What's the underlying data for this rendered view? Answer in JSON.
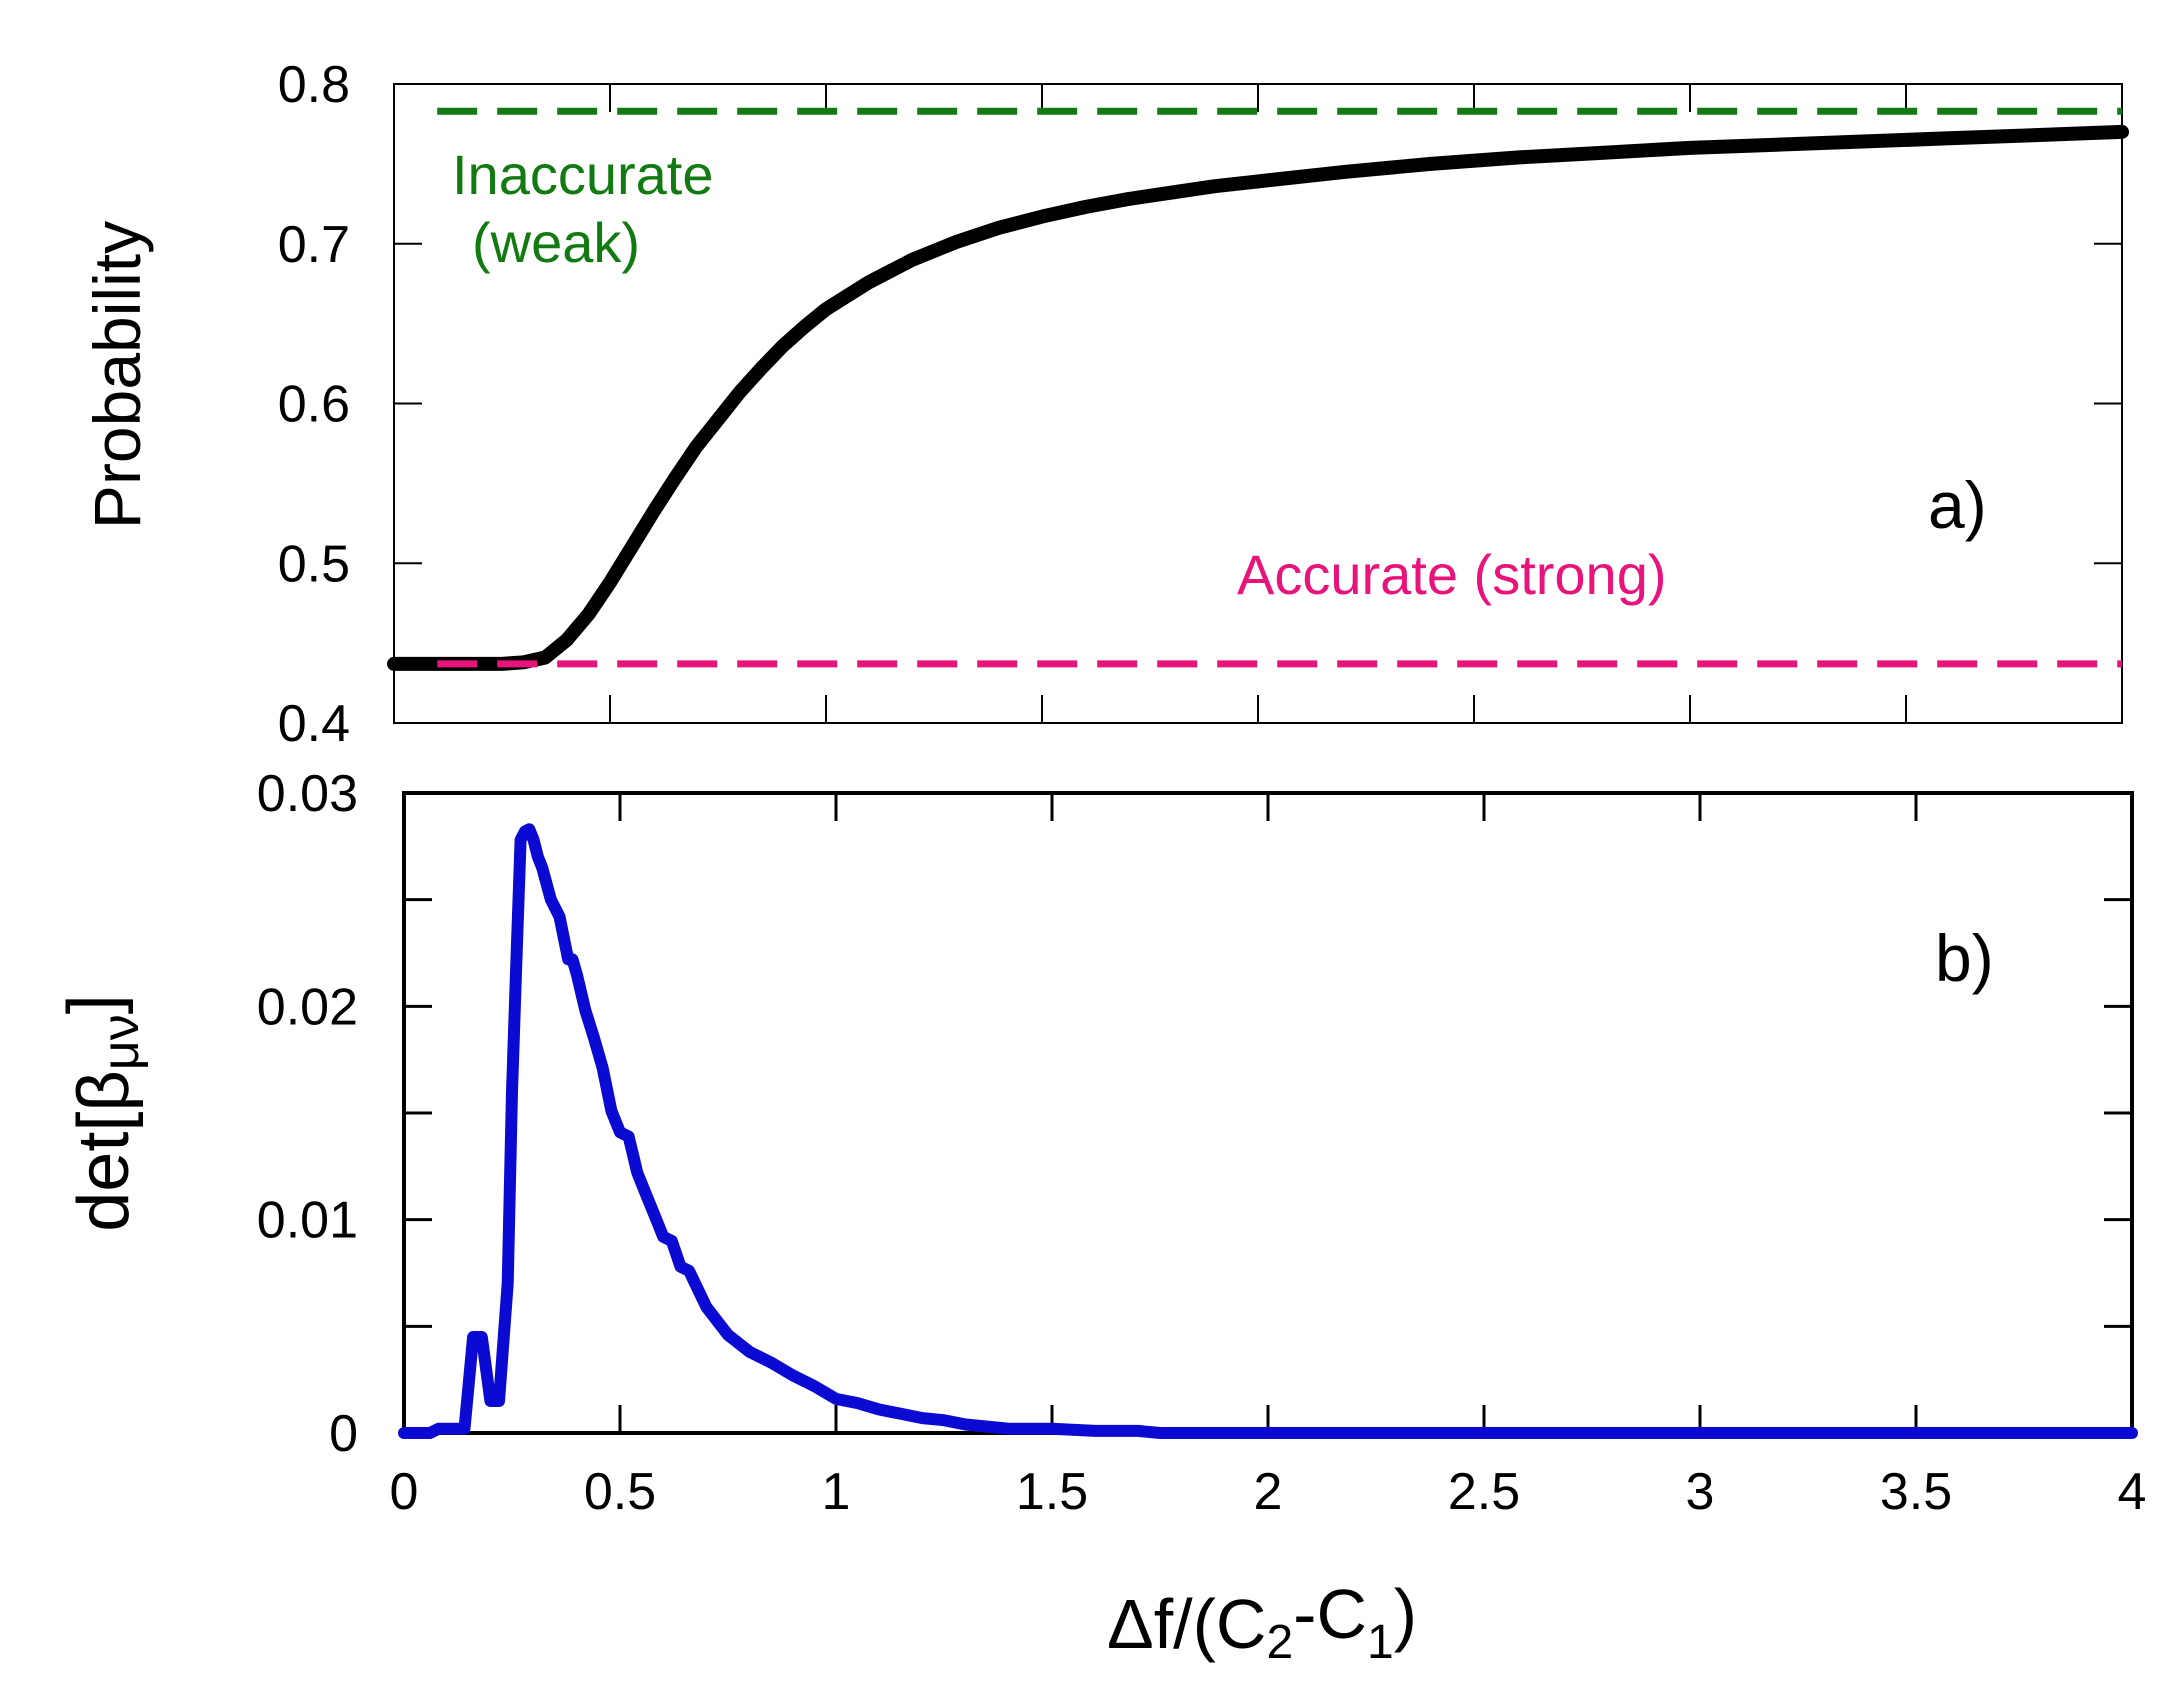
{
  "chart_data": [
    {
      "panel_label": "a)",
      "type": "line",
      "title": "",
      "xlabel": "",
      "ylabel": "Probability",
      "xlim": [
        0,
        4
      ],
      "ylim": [
        0.4,
        0.8
      ],
      "yticks": [
        0.4,
        0.5,
        0.6,
        0.7,
        0.8
      ],
      "ytick_labels": [
        "0.4",
        "0.5",
        "0.6",
        "0.7",
        "0.8"
      ],
      "xticks": [
        0,
        0.5,
        1,
        1.5,
        2,
        2.5,
        3,
        3.5,
        4
      ],
      "series": [
        {
          "name": "probability",
          "color": "#000000",
          "style": "solid",
          "x": [
            0,
            0.1,
            0.2,
            0.25,
            0.3,
            0.35,
            0.4,
            0.45,
            0.5,
            0.55,
            0.6,
            0.65,
            0.7,
            0.75,
            0.8,
            0.85,
            0.9,
            0.95,
            1.0,
            1.1,
            1.2,
            1.3,
            1.4,
            1.5,
            1.6,
            1.7,
            1.8,
            1.9,
            2.0,
            2.2,
            2.4,
            2.6,
            2.8,
            3.0,
            3.2,
            3.4,
            3.6,
            3.8,
            4.0
          ],
          "y": [
            0.437,
            0.437,
            0.437,
            0.437,
            0.438,
            0.441,
            0.452,
            0.468,
            0.488,
            0.51,
            0.532,
            0.553,
            0.573,
            0.59,
            0.607,
            0.622,
            0.636,
            0.648,
            0.659,
            0.676,
            0.69,
            0.701,
            0.71,
            0.717,
            0.723,
            0.728,
            0.732,
            0.736,
            0.739,
            0.745,
            0.75,
            0.754,
            0.757,
            0.76,
            0.762,
            0.764,
            0.766,
            0.768,
            0.77
          ]
        },
        {
          "name": "Inaccurate (weak)",
          "color": "#117a11",
          "style": "dashed",
          "x": [
            0.1,
            4.0
          ],
          "y": [
            0.783,
            0.783
          ]
        },
        {
          "name": "Accurate (strong)",
          "color": "#e8137b",
          "style": "dashed",
          "x": [
            0.1,
            4.0
          ],
          "y": [
            0.437,
            0.437
          ]
        }
      ],
      "annotations": {
        "inaccurate_line1": "Inaccurate",
        "inaccurate_line2": "(weak)",
        "accurate": "Accurate (strong)"
      }
    },
    {
      "panel_label": "b)",
      "type": "line",
      "title": "",
      "xlabel": "Δf/(C2-C1)",
      "xlabel_parts": {
        "base": "Δf/(C",
        "sub1": "2",
        "mid": "-C",
        "sub2": "1",
        "end": ")"
      },
      "ylabel": "det[βμν]",
      "ylabel_parts": {
        "base": "det[β",
        "sub": "μν",
        "end": "]"
      },
      "xlim": [
        0,
        4
      ],
      "ylim": [
        0,
        0.03
      ],
      "yticks": [
        0,
        0.005,
        0.01,
        0.015,
        0.02,
        0.025,
        0.03
      ],
      "ytick_labels": [
        "0",
        "",
        "0.01",
        "",
        "0.02",
        "",
        "0.03"
      ],
      "xticks": [
        0,
        0.5,
        1,
        1.5,
        2,
        2.5,
        3,
        3.5,
        4
      ],
      "xtick_labels": [
        "0",
        "0.5",
        "1",
        "1.5",
        "2",
        "2.5",
        "3",
        "3.5",
        "4"
      ],
      "series": [
        {
          "name": "det",
          "color": "#0a0ad2",
          "style": "solid",
          "x": [
            0,
            0.06,
            0.08,
            0.1,
            0.12,
            0.14,
            0.16,
            0.18,
            0.2,
            0.22,
            0.24,
            0.25,
            0.26,
            0.27,
            0.28,
            0.29,
            0.3,
            0.31,
            0.32,
            0.34,
            0.36,
            0.38,
            0.39,
            0.4,
            0.42,
            0.44,
            0.46,
            0.48,
            0.5,
            0.52,
            0.54,
            0.56,
            0.58,
            0.6,
            0.62,
            0.64,
            0.66,
            0.7,
            0.75,
            0.8,
            0.85,
            0.9,
            0.95,
            1.0,
            1.05,
            1.1,
            1.15,
            1.2,
            1.25,
            1.3,
            1.35,
            1.4,
            1.5,
            1.6,
            1.7,
            1.75,
            2.0,
            2.5,
            3.0,
            3.5,
            4.0
          ],
          "y": [
            0,
            0,
            0.0002,
            0.0002,
            0.0002,
            0.0002,
            0.0045,
            0.0045,
            0.0015,
            0.0015,
            0.007,
            0.016,
            0.022,
            0.0278,
            0.0282,
            0.0283,
            0.0278,
            0.027,
            0.0265,
            0.025,
            0.0242,
            0.0222,
            0.0222,
            0.0215,
            0.0198,
            0.0185,
            0.0171,
            0.0151,
            0.0141,
            0.0139,
            0.0122,
            0.0112,
            0.0102,
            0.0092,
            0.009,
            0.0078,
            0.0076,
            0.0059,
            0.0046,
            0.0038,
            0.0033,
            0.0027,
            0.0022,
            0.0016,
            0.0014,
            0.0011,
            0.0009,
            0.0007,
            0.0006,
            0.0004,
            0.0003,
            0.0002,
            0.0002,
            0.0001,
            0.0001,
            0,
            0,
            0,
            0,
            0,
            0
          ]
        }
      ]
    }
  ]
}
